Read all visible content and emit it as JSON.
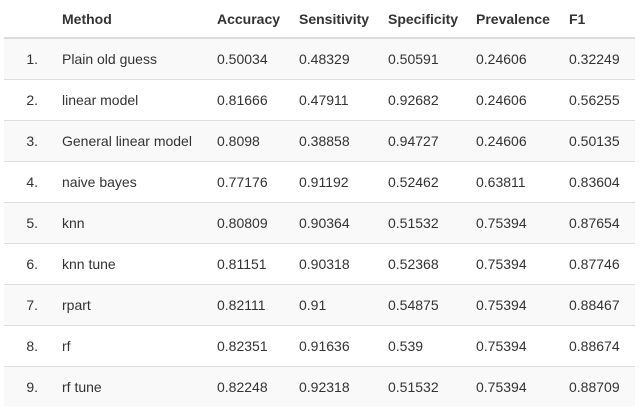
{
  "table": {
    "headers": [
      "",
      "Method",
      "Accuracy",
      "Sensitivity",
      "Specificity",
      "Prevalence",
      "F1"
    ],
    "rows": [
      {
        "index": "1.",
        "method": "Plain old guess",
        "accuracy": "0.50034",
        "sensitivity": "0.48329",
        "specificity": "0.50591",
        "prevalence": "0.24606",
        "f1": "0.32249"
      },
      {
        "index": "2.",
        "method": "linear model",
        "accuracy": "0.81666",
        "sensitivity": "0.47911",
        "specificity": "0.92682",
        "prevalence": "0.24606",
        "f1": "0.56255"
      },
      {
        "index": "3.",
        "method": "General linear model",
        "accuracy": "0.8098",
        "sensitivity": "0.38858",
        "specificity": "0.94727",
        "prevalence": "0.24606",
        "f1": "0.50135"
      },
      {
        "index": "4.",
        "method": "naive bayes",
        "accuracy": "0.77176",
        "sensitivity": "0.91192",
        "specificity": "0.52462",
        "prevalence": "0.63811",
        "f1": "0.83604"
      },
      {
        "index": "5.",
        "method": "knn",
        "accuracy": "0.80809",
        "sensitivity": "0.90364",
        "specificity": "0.51532",
        "prevalence": "0.75394",
        "f1": "0.87654"
      },
      {
        "index": "6.",
        "method": "knn tune",
        "accuracy": "0.81151",
        "sensitivity": "0.90318",
        "specificity": "0.52368",
        "prevalence": "0.75394",
        "f1": "0.87746"
      },
      {
        "index": "7.",
        "method": "rpart",
        "accuracy": "0.82111",
        "sensitivity": "0.91",
        "specificity": "0.54875",
        "prevalence": "0.75394",
        "f1": "0.88467"
      },
      {
        "index": "8.",
        "method": "rf",
        "accuracy": "0.82351",
        "sensitivity": "0.91636",
        "specificity": "0.539",
        "prevalence": "0.75394",
        "f1": "0.88674"
      },
      {
        "index": "9.",
        "method": "rf tune",
        "accuracy": "0.82248",
        "sensitivity": "0.92318",
        "specificity": "0.51532",
        "prevalence": "0.75394",
        "f1": "0.88709"
      }
    ]
  }
}
